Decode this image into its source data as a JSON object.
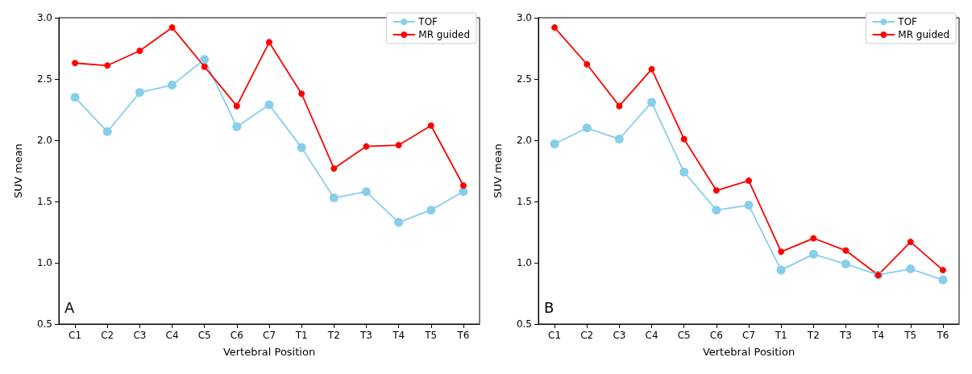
{
  "chart_data": [
    {
      "type": "line",
      "xlabel": "Vertebral Position",
      "ylabel": "SUV mean",
      "categories": [
        "C1",
        "C2",
        "C3",
        "C4",
        "C5",
        "C6",
        "C7",
        "T1",
        "T2",
        "T3",
        "T4",
        "T5",
        "T6"
      ],
      "series": [
        {
          "name": "TOF",
          "color": "#87ceeb",
          "values": [
            2.35,
            2.07,
            2.39,
            2.45,
            2.66,
            2.11,
            2.29,
            1.94,
            1.53,
            1.58,
            1.33,
            1.43,
            1.58
          ]
        },
        {
          "name": "MR guided",
          "color": "#ff0000",
          "values": [
            2.63,
            2.61,
            2.73,
            2.92,
            2.6,
            2.28,
            2.8,
            2.38,
            1.77,
            1.95,
            1.96,
            2.12,
            1.63
          ]
        }
      ],
      "ylim": [
        0.5,
        3.0
      ],
      "yticks": [
        0.5,
        {
          "value": 1,
          "label": "1.0"
        },
        1.5,
        {
          "value": 2,
          "label": "2.0"
        },
        2.5,
        {
          "value": 3,
          "label": "3.0"
        }
      ],
      "grid": false,
      "legend": "top right",
      "marker": "circle",
      "line_style": "solid",
      "annotations": [
        "A"
      ]
    },
    {
      "type": "line",
      "xlabel": "Vertebral Position",
      "ylabel": "SUV mean",
      "categories": [
        "C1",
        "C2",
        "C3",
        "C4",
        "C5",
        "C6",
        "C7",
        "T1",
        "T2",
        "T3",
        "T4",
        "T5",
        "T6"
      ],
      "series": [
        {
          "name": "TOF",
          "color": "#87ceeb",
          "values": [
            1.97,
            2.1,
            2.01,
            2.31,
            1.74,
            1.43,
            1.47,
            0.94,
            1.07,
            0.99,
            0.9,
            0.95,
            0.86
          ]
        },
        {
          "name": "MR guided",
          "color": "#ff0000",
          "values": [
            2.92,
            2.62,
            2.28,
            2.58,
            2.01,
            1.59,
            1.67,
            1.09,
            1.2,
            1.1,
            0.9,
            1.17,
            0.94
          ]
        }
      ],
      "ylim": [
        0.5,
        3.0
      ],
      "yticks": [
        0.5,
        {
          "value": 1,
          "label": "1.0"
        },
        1.5,
        {
          "value": 2,
          "label": "2.0"
        },
        2.5,
        {
          "value": 3,
          "label": "3.0"
        }
      ],
      "grid": false,
      "legend": "top right",
      "marker": "circle",
      "line_style": "solid",
      "annotations": [
        "B"
      ]
    }
  ]
}
